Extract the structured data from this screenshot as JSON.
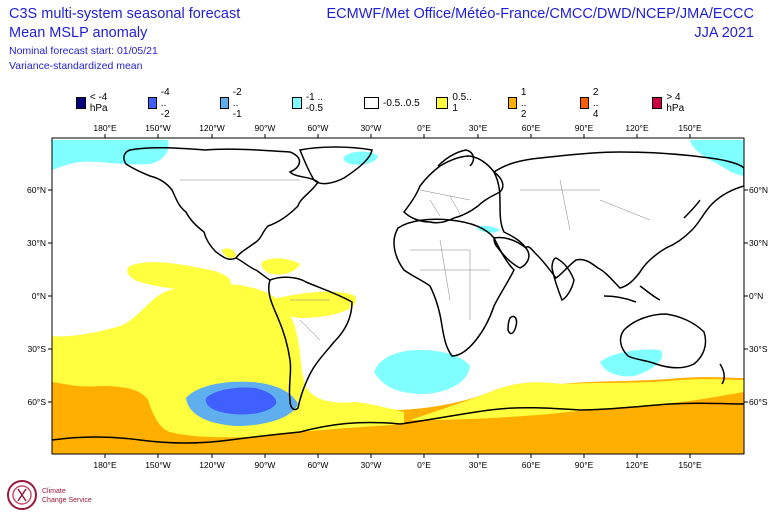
{
  "title": {
    "line1": "C3S multi-system seasonal forecast",
    "line2": "Mean MSLP anomaly",
    "line3": "Nominal forecast start: 01/05/21",
    "line4": "Variance-standardized mean",
    "right1": "ECMWF/Met Office/Météo-France/CMCC/DWD/NCEP/JMA/ECCC",
    "right2": "JJA 2021"
  },
  "legend": [
    {
      "label": "< -4 hPa",
      "color": "#00007f"
    },
    {
      "label": "-4 .. -2",
      "color": "#3f5fff"
    },
    {
      "label": "-2 .. -1",
      "color": "#5fafef"
    },
    {
      "label": "-1 .. -0.5",
      "color": "#7fffff"
    },
    {
      "label": "-0.5..0.5",
      "color": "#ffffff"
    },
    {
      "label": "0.5.. 1",
      "color": "#ffff3f"
    },
    {
      "label": "1 .. 2",
      "color": "#ffaf00"
    },
    {
      "label": "2 .. 4",
      "color": "#ff5f00"
    },
    {
      "label": "> 4 hPa",
      "color": "#cf003f"
    }
  ],
  "lon_labels": [
    "180°E",
    "150°W",
    "120°W",
    "90°W",
    "60°W",
    "30°W",
    "0°E",
    "30°E",
    "60°E",
    "90°E",
    "120°E",
    "150°E"
  ],
  "lat_labels": [
    "60°N",
    "30°N",
    "0°N",
    "30°S",
    "60°S"
  ],
  "logo": {
    "line1": "Climate",
    "line2": "Change Service"
  }
}
